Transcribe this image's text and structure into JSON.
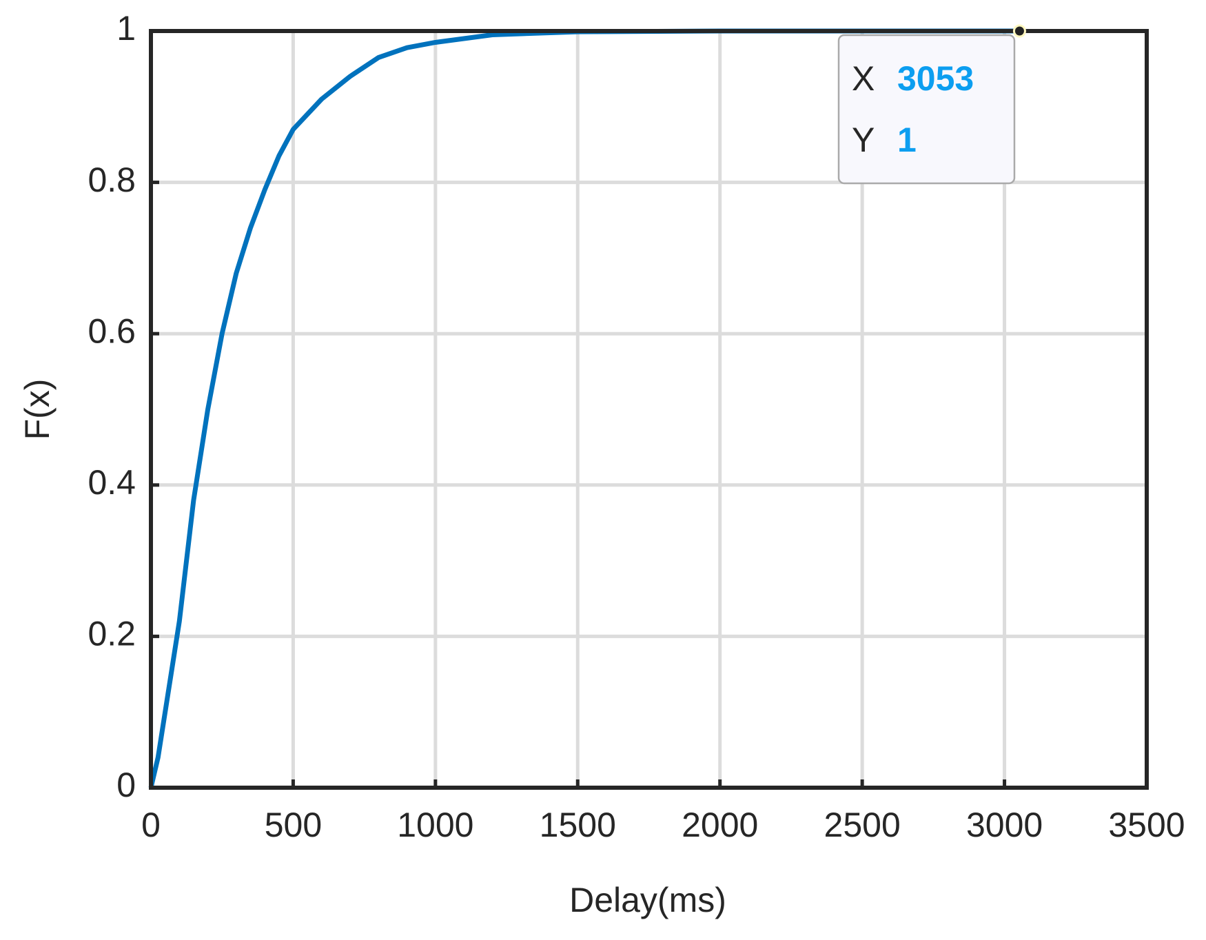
{
  "chart_data": {
    "type": "line",
    "x_label": "Delay(ms)",
    "y_label": "F(x)",
    "x": [
      0,
      25,
      50,
      75,
      100,
      150,
      200,
      250,
      300,
      350,
      400,
      450,
      500,
      600,
      700,
      800,
      900,
      1000,
      1200,
      1500,
      2000,
      2500,
      3053
    ],
    "series": [
      {
        "color": "#0072bd",
        "values": [
          0,
          0.04,
          0.1,
          0.16,
          0.22,
          0.38,
          0.5,
          0.6,
          0.68,
          0.74,
          0.79,
          0.835,
          0.87,
          0.91,
          0.94,
          0.965,
          0.978,
          0.985,
          0.995,
          0.999,
          1,
          1,
          1
        ]
      }
    ],
    "xlim": [
      0,
      3500
    ],
    "xticks": [
      0,
      500,
      1000,
      1500,
      2000,
      2500,
      3000,
      3500
    ],
    "ylim": [
      0,
      1
    ],
    "yticks": [
      0,
      0.2,
      0.4,
      0.6,
      0.8,
      1
    ],
    "grid": true,
    "datatip": {
      "x_name": "X",
      "x": 3053,
      "y_name": "Y",
      "y": 1
    }
  }
}
